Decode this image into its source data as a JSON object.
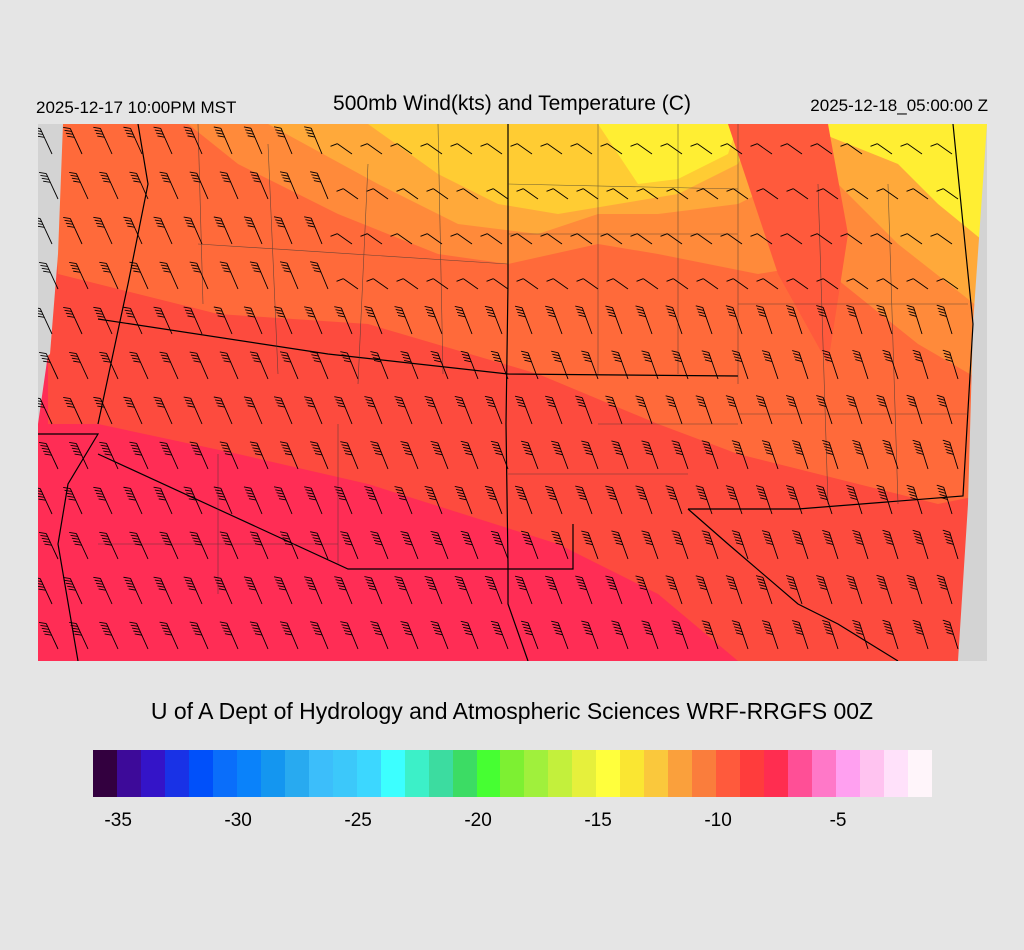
{
  "header": {
    "valid_local": "2025-12-17 10:00PM MST",
    "title": "500mb Wind(kts) and Temperature (C)",
    "valid_utc": "2025-12-18_05:00:00 Z"
  },
  "credit": "U of A Dept of Hydrology and Atmospheric Sciences WRF-RRGFS 00Z",
  "map": {
    "field": "500mb temperature (C)",
    "region_colors": {
      "outside_domain": "#d3d3d3",
      "warmest_south": "#ff2d55",
      "south": "#ff3c46",
      "central": "#fd4b3e",
      "north_central": "#ff7c3a",
      "north": "#ffa93a",
      "northeast": "#ffcc33",
      "coldest_northeast": "#ffee33"
    },
    "wind_barbs": "black",
    "boundaries": "black"
  },
  "colorbar": {
    "colors": [
      "#33003f",
      "#3d0a99",
      "#3414c8",
      "#1932e6",
      "#0050fa",
      "#0a6efa",
      "#0a82fa",
      "#1496f0",
      "#28aaf0",
      "#3cbefa",
      "#3cc8fa",
      "#3cd7ff",
      "#3cffff",
      "#3cf0c8",
      "#3cdca0",
      "#3cdc64",
      "#46ff32",
      "#7df032",
      "#a0f03c",
      "#c3f03c",
      "#e6f03c",
      "#ffff3c",
      "#fae632",
      "#fac83c",
      "#faa03c",
      "#fa7d3c",
      "#ff5a3c",
      "#ff3c3c",
      "#ff2d50",
      "#ff4f96",
      "#ff78c8",
      "#ffa0f0",
      "#ffc3f0",
      "#ffe1fa",
      "#fff5fa"
    ],
    "labels": [
      {
        "text": "-35",
        "pos": 0.03
      },
      {
        "text": "-30",
        "pos": 0.173
      },
      {
        "text": "-25",
        "pos": 0.316
      },
      {
        "text": "-20",
        "pos": 0.459
      },
      {
        "text": "-15",
        "pos": 0.602
      },
      {
        "text": "-10",
        "pos": 0.745
      },
      {
        "text": "-5",
        "pos": 0.888
      }
    ]
  }
}
